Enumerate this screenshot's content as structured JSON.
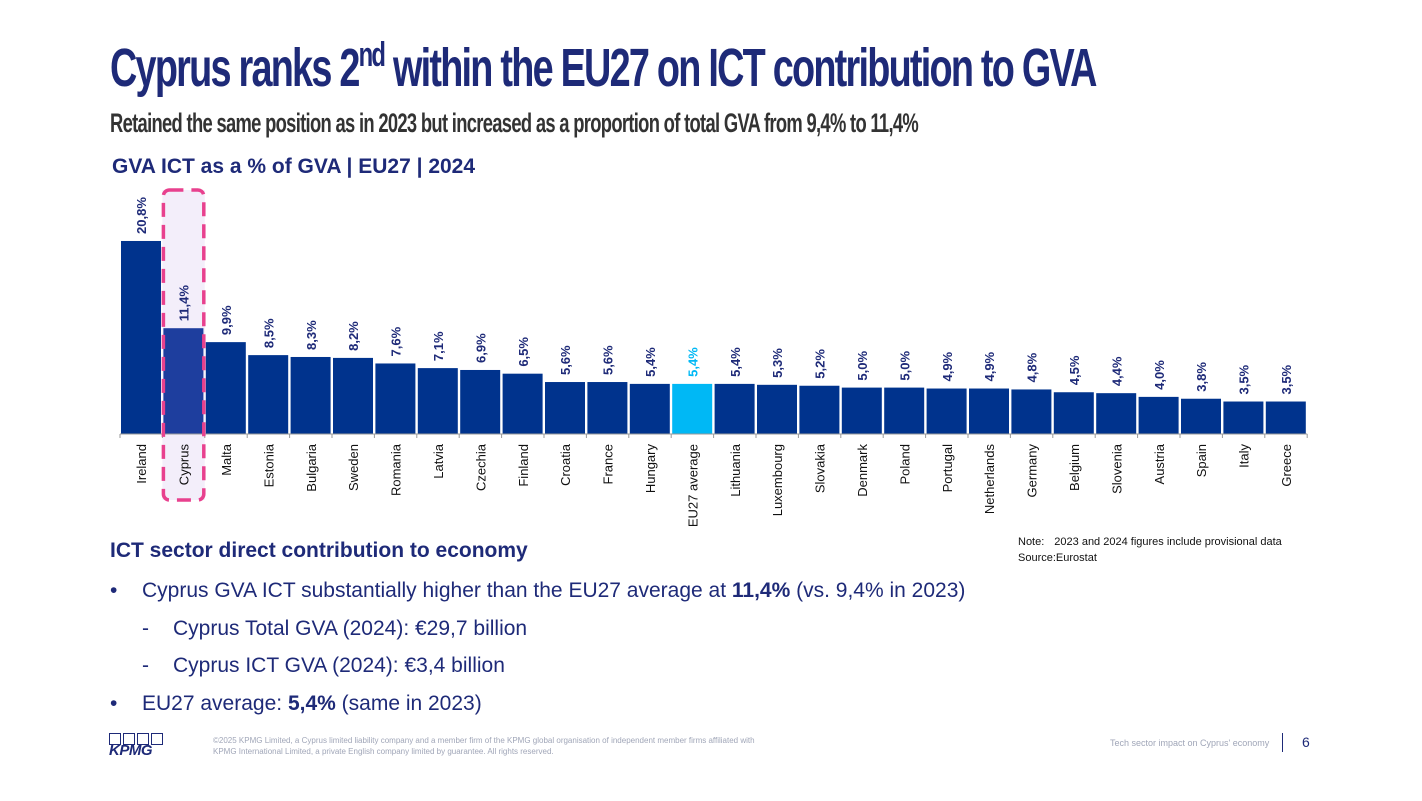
{
  "slide": {
    "title_main": "Cyprus ranks 2",
    "title_sup": "nd",
    "title_rest": " within the EU27 on ICT contribution to GVA",
    "subtitle": "Retained the same position as in 2023 but increased as a proportion of total GVA from 9,4% to 11,4%"
  },
  "chart_data": {
    "type": "bar",
    "title": "GVA ICT as a % of GVA | EU27 | 2024",
    "categories": [
      "Ireland",
      "Cyprus",
      "Malta",
      "Estonia",
      "Bulgaria",
      "Sweden",
      "Romania",
      "Latvia",
      "Czechia",
      "Finland",
      "Croatia",
      "France",
      "Hungary",
      "EU27 average",
      "Lithuania",
      "Luxembourg",
      "Slovakia",
      "Denmark",
      "Poland",
      "Portugal",
      "Netherlands",
      "Germany",
      "Belgium",
      "Slovenia",
      "Austria",
      "Spain",
      "Italy",
      "Greece"
    ],
    "values": [
      20.8,
      11.4,
      9.9,
      8.5,
      8.3,
      8.2,
      7.6,
      7.1,
      6.9,
      6.5,
      5.6,
      5.6,
      5.4,
      5.4,
      5.4,
      5.3,
      5.2,
      5.0,
      5.0,
      4.9,
      4.9,
      4.8,
      4.5,
      4.4,
      4.0,
      3.8,
      3.5,
      3.5
    ],
    "labels": [
      "20,8%",
      "11,4%",
      "9,9%",
      "8,5%",
      "8,3%",
      "8,2%",
      "7,6%",
      "7,1%",
      "6,9%",
      "6,5%",
      "5,6%",
      "5,6%",
      "5,4%",
      "5,4%",
      "5,4%",
      "5,3%",
      "5,2%",
      "5,0%",
      "5,0%",
      "4,9%",
      "4,9%",
      "4,8%",
      "4,5%",
      "4,4%",
      "4,0%",
      "3,8%",
      "3,5%",
      "3,5%"
    ],
    "highlight_category": "Cyprus",
    "average_category": "EU27 average",
    "colors": {
      "bar": "#00338d",
      "highlight": "#1e3e9e",
      "average": "#00b8f5",
      "label": "#1e2a78",
      "highlight_box": "#e8418e",
      "highlight_fill": "#f3eefa"
    },
    "xlabel": "",
    "ylabel": "",
    "grid": false
  },
  "note": {
    "label": "Note:",
    "text": "2023 and 2024 figures include provisional data",
    "source": "Source:Eurostat"
  },
  "section": {
    "heading": "ICT sector direct contribution to economy",
    "bullets": [
      {
        "marker": "•",
        "level": 1,
        "before": "Cyprus GVA ICT substantially higher than the EU27 average at ",
        "bold": "11,4%",
        "after": " (vs. 9,4% in 2023)"
      },
      {
        "marker": "-",
        "level": 2,
        "before": "Cyprus Total GVA (2024): €29,7 billion",
        "bold": "",
        "after": ""
      },
      {
        "marker": "-",
        "level": 2,
        "before": "Cyprus ICT GVA (2024): €3,4 billion",
        "bold": "",
        "after": ""
      },
      {
        "marker": "•",
        "level": 1,
        "before": "EU27 average: ",
        "bold": "5,4%",
        "after": " (same in 2023)"
      }
    ]
  },
  "footer": {
    "logo_text": "KPMG",
    "copyright": "©2025 KPMG Limited, a Cyprus limited liability company and a member firm of the KPMG global organisation of independent member firms affiliated with KPMG International Limited, a private English company limited by guarantee. All rights reserved.",
    "doc_title": "Tech sector impact on Cyprus' economy",
    "page_number": "6"
  }
}
